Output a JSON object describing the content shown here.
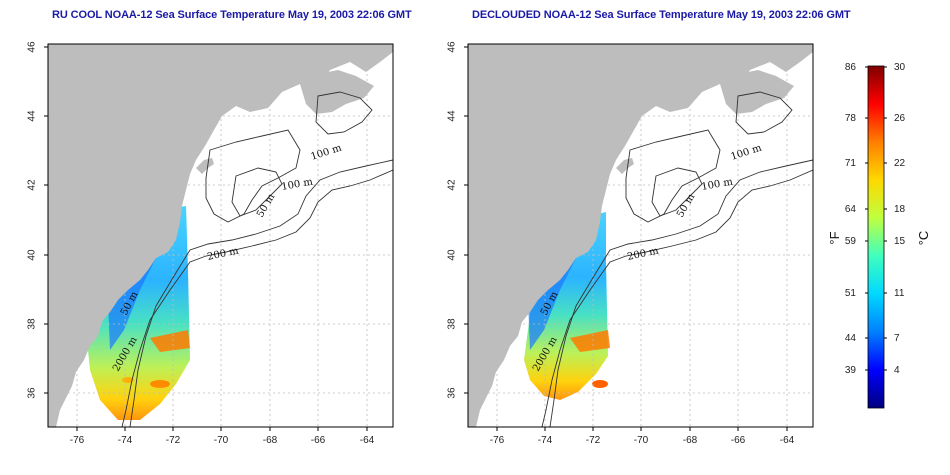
{
  "panels": [
    {
      "title": "RU COOL NOAA-12 Sea Surface Temperature May 19, 2003 22:06 GMT",
      "x_ticks": [
        "-76",
        "-74",
        "-72",
        "-70",
        "-68",
        "-66",
        "-64"
      ],
      "y_ticks": [
        "46",
        "44",
        "42",
        "40",
        "38",
        "36"
      ],
      "contour_labels": [
        "100 m",
        "100 m",
        "50 m",
        "200 m",
        "50 m",
        "2000 m"
      ]
    },
    {
      "title": "DECLOUDED NOAA-12 Sea Surface Temperature May 19, 2003 22:06 GMT",
      "x_ticks": [
        "-76",
        "-74",
        "-72",
        "-70",
        "-68",
        "-66",
        "-64"
      ],
      "y_ticks": [
        "46",
        "44",
        "42",
        "40",
        "38",
        "36"
      ],
      "contour_labels": [
        "100 m",
        "100 m",
        "50 m",
        "200 m",
        "50 m",
        "2000 m"
      ]
    }
  ],
  "colorbar": {
    "fahrenheit_label": "°F",
    "celsius_label": "°C",
    "fahrenheit_ticks": [
      "86",
      "78",
      "71",
      "64",
      "59",
      "51",
      "44",
      "39"
    ],
    "celsius_ticks": [
      "30",
      "26",
      "22",
      "18",
      "15",
      "11",
      "7",
      "4"
    ]
  },
  "colors": {
    "land": "#bdbdbd",
    "ocean": "#ffffff",
    "title": "#1a1aa6",
    "scale": [
      "#00007f",
      "#0000ff",
      "#007fff",
      "#00d8ff",
      "#3fffbf",
      "#bfff3f",
      "#ffd800",
      "#ff7f00",
      "#ff0000",
      "#7f0000"
    ]
  }
}
